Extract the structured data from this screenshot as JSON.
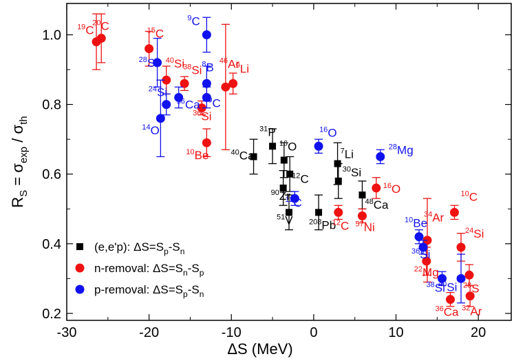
{
  "chart_data": {
    "type": "scatter",
    "title": "",
    "xlabel": "ΔS  (MeV)",
    "ylabel": "R_S = σ_exp / σ_th",
    "xlim": [
      -30,
      24
    ],
    "ylim": [
      0.18,
      1.09
    ],
    "x_ticks": [
      -30,
      -20,
      -10,
      0,
      10,
      20
    ],
    "x_tick_labels": [
      "-30",
      "-20",
      "-10",
      "0",
      "10",
      "20"
    ],
    "y_ticks": [
      0.2,
      0.4,
      0.6,
      0.8,
      1.0
    ],
    "y_tick_labels": [
      "0.2",
      "0.4",
      "0.6",
      "0.8",
      "1.0"
    ],
    "colors": {
      "eep": "#000000",
      "n_removal": "#ee1111",
      "p_removal": "#1111ee"
    },
    "legend": [
      {
        "text": "(e,e'p): ΔS=S_p-S_n",
        "marker": "square",
        "color": "#000000"
      },
      {
        "text": "n-removal: ΔS=S_n-S_p",
        "marker": "circle",
        "color": "#ee1111"
      },
      {
        "text": "p-removal: ΔS=S_p-S_n",
        "marker": "circle",
        "color": "#1111ee"
      }
    ],
    "series": [
      {
        "name": "(e,e'p)",
        "marker": "square",
        "color": "#000000",
        "points": [
          {
            "x": -7.3,
            "y": 0.65,
            "err": 0.05,
            "sup": "40",
            "el": "Ca"
          },
          {
            "x": -5.0,
            "y": 0.68,
            "err": 0.05,
            "sup": "31",
            "el": "P"
          },
          {
            "x": -3.6,
            "y": 0.64,
            "err": 0.05,
            "sup": "16",
            "el": "O"
          },
          {
            "x": -2.9,
            "y": 0.6,
            "err": 0.05,
            "sup": "12",
            "el": "C"
          },
          {
            "x": -3.7,
            "y": 0.56,
            "err": 0.05,
            "sup": "90",
            "el": "Zr"
          },
          {
            "x": -3.0,
            "y": 0.49,
            "err": 0.05,
            "sup": "51",
            "el": "V"
          },
          {
            "x": 0.6,
            "y": 0.49,
            "err": 0.05,
            "sup": "208",
            "el": "Pb"
          },
          {
            "x": 2.9,
            "y": 0.63,
            "err": 0.06,
            "sup": "7",
            "el": "Li"
          },
          {
            "x": 3.0,
            "y": 0.58,
            "err": 0.05,
            "sup": "30",
            "el": "Si"
          },
          {
            "x": 5.9,
            "y": 0.54,
            "err": 0.04,
            "sup": "48",
            "el": "Ca"
          }
        ]
      },
      {
        "name": "n-removal",
        "marker": "circle",
        "color": "#ee1111",
        "points": [
          {
            "x": -26.4,
            "y": 0.98,
            "err": 0.08,
            "sup": "19",
            "el": "C"
          },
          {
            "x": -25.8,
            "y": 0.99,
            "err": 0.07,
            "sup": "20",
            "el": "C"
          },
          {
            "x": -20.0,
            "y": 0.96,
            "err": 0.05,
            "sup": "15",
            "el": "C"
          },
          {
            "x": -17.9,
            "y": 0.87,
            "err": 0.04,
            "sup": "40",
            "el": "Si"
          },
          {
            "x": -15.7,
            "y": 0.86,
            "err": 0.02,
            "sup": "38",
            "el": "Si"
          },
          {
            "x": -13.6,
            "y": 0.79,
            "err": 0.02,
            "sup": "36",
            "el": "Si"
          },
          {
            "x": -13.0,
            "y": 0.69,
            "err": 0.04,
            "sup": "10",
            "el": "Be"
          },
          {
            "x": -10.7,
            "y": 0.85,
            "err": 0.18,
            "sup": "46",
            "el": "Ar"
          },
          {
            "x": -9.8,
            "y": 0.86,
            "err": 0.03,
            "sup": "9",
            "el": "Li"
          },
          {
            "x": 7.6,
            "y": 0.56,
            "err": 0.03,
            "sup": "16",
            "el": "O"
          },
          {
            "x": 3.0,
            "y": 0.49,
            "err": 0.02,
            "sup": "12",
            "el": "C"
          },
          {
            "x": 5.9,
            "y": 0.48,
            "err": 0.02,
            "sup": "57",
            "el": "Ni"
          },
          {
            "x": 13.8,
            "y": 0.41,
            "err": 0.12,
            "sup": "34",
            "el": "Ar"
          },
          {
            "x": 17.1,
            "y": 0.49,
            "err": 0.02,
            "sup": "10",
            "el": "C"
          },
          {
            "x": 17.9,
            "y": 0.39,
            "err": 0.04,
            "sup": "24",
            "el": "Si"
          },
          {
            "x": 13.7,
            "y": 0.35,
            "err": 0.04,
            "sup": "22",
            "el": "Mg"
          },
          {
            "x": 18.9,
            "y": 0.31,
            "err": 0.03,
            "sup": "28",
            "el": "S"
          },
          {
            "x": 19.0,
            "y": 0.25,
            "err": 0.03,
            "sup": "32",
            "el": "Ar"
          },
          {
            "x": 16.6,
            "y": 0.24,
            "err": 0.02,
            "sup": "36",
            "el": "Ca"
          }
        ]
      },
      {
        "name": "p-removal",
        "marker": "circle",
        "color": "#1111ee",
        "points": [
          {
            "x": -19.0,
            "y": 0.92,
            "err": 0.07,
            "sup": "28",
            "el": "S"
          },
          {
            "x": -13.0,
            "y": 1.0,
            "err": 0.05,
            "sup": "9",
            "el": "C"
          },
          {
            "x": -13.0,
            "y": 0.86,
            "err": 0.05,
            "sup": "8",
            "el": "B"
          },
          {
            "x": -13.0,
            "y": 0.82,
            "err": 0.03,
            "sup": "9",
            "el": "C"
          },
          {
            "x": -17.9,
            "y": 0.8,
            "err": 0.03,
            "sup": "24",
            "el": "Si"
          },
          {
            "x": -16.4,
            "y": 0.82,
            "err": 0.03,
            "sup": "36",
            "el": "Ca"
          },
          {
            "x": -18.6,
            "y": 0.76,
            "err": 0.11,
            "sup": "14",
            "el": "O"
          },
          {
            "x": 0.6,
            "y": 0.68,
            "err": 0.02,
            "sup": "16",
            "el": "O"
          },
          {
            "x": -2.3,
            "y": 0.53,
            "err": 0.02,
            "sup": "12",
            "el": "C"
          },
          {
            "x": 8.1,
            "y": 0.65,
            "err": 0.02,
            "sup": "28",
            "el": "Mg"
          },
          {
            "x": 12.8,
            "y": 0.42,
            "err": 0.02,
            "sup": "10",
            "el": "Be"
          },
          {
            "x": 13.3,
            "y": 0.39,
            "err": 0.02,
            "sup": "36",
            "el": "Si"
          },
          {
            "x": 15.6,
            "y": 0.3,
            "err": 0.02,
            "sup": "38",
            "el": "Si"
          },
          {
            "x": 17.9,
            "y": 0.3,
            "err": 0.07,
            "sup": "40",
            "el": "Si"
          }
        ]
      }
    ]
  }
}
